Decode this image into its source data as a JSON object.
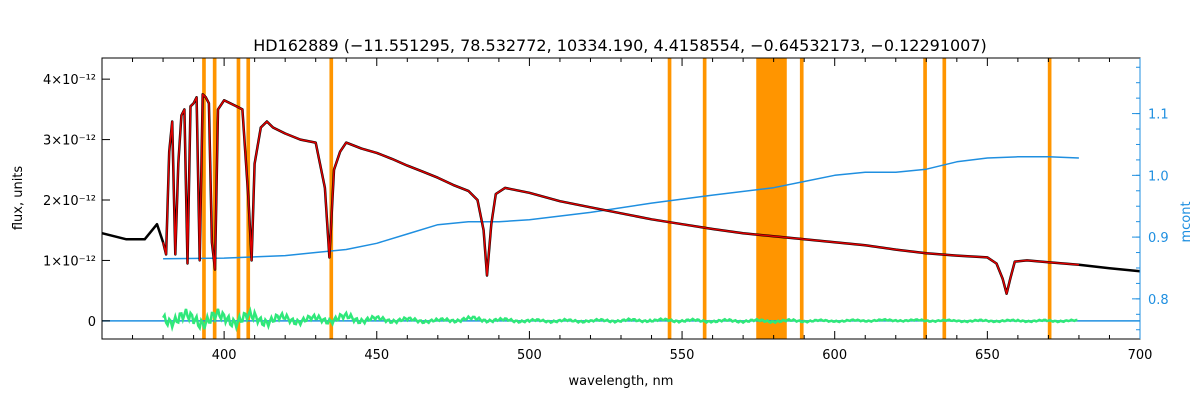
{
  "chart_data": {
    "type": "line",
    "title": "HD162889   (−11.551295, 78.532772, 10334.190, 4.4158554, −0.64532173, −0.12291007)",
    "xlabel": "wavelength, nm",
    "ylabel": "flux, units",
    "y2label": "mcont",
    "xlim": [
      360,
      700
    ],
    "ylim": [
      -3e-13,
      4.35e-12
    ],
    "y2lim": [
      0.735,
      1.19
    ],
    "x_ticks": [
      400,
      450,
      500,
      550,
      600,
      650,
      700
    ],
    "x_tick_labels": [
      "400",
      "450",
      "500",
      "550",
      "600",
      "650",
      "700"
    ],
    "y_ticks": [
      0,
      1e-12,
      2e-12,
      3e-12,
      4e-12
    ],
    "y_tick_labels": [
      "0",
      "1×10⁻¹²",
      "2×10⁻¹²",
      "3×10⁻¹²",
      "4×10⁻¹²"
    ],
    "y2_ticks": [
      0.8,
      0.9,
      1.0,
      1.1
    ],
    "y2_tick_labels": [
      "0.8",
      "0.9",
      "1.0",
      "1.1"
    ],
    "masked_bands": [
      [
        392.8,
        394.0
      ],
      [
        396.3,
        397.5
      ],
      [
        404.1,
        405.3
      ],
      [
        407.3,
        408.5
      ],
      [
        434.5,
        435.7
      ],
      [
        545.3,
        546.5
      ],
      [
        556.8,
        558.0
      ],
      [
        574.3,
        584.3
      ],
      [
        588.6,
        589.8
      ],
      [
        629.0,
        630.2
      ],
      [
        635.3,
        636.5
      ],
      [
        669.8,
        671.0
      ]
    ],
    "series": [
      {
        "role": "observed",
        "color": "#000000",
        "x": [
          360,
          368,
          374,
          378,
          380,
          381,
          382,
          383,
          384,
          385,
          386,
          387,
          388,
          389,
          390,
          391,
          392,
          393,
          394,
          395,
          396,
          397,
          398,
          400,
          402,
          404,
          406,
          408,
          409,
          410,
          412,
          414,
          416,
          418,
          420,
          425,
          430,
          433,
          434.5,
          436,
          438,
          440,
          445,
          450,
          455,
          460,
          465,
          470,
          475,
          480,
          483,
          485,
          486.1,
          487.5,
          489,
          492,
          500,
          510,
          520,
          530,
          540,
          550,
          560,
          570,
          580,
          590,
          600,
          610,
          620,
          630,
          640,
          650,
          653,
          655,
          656.3,
          657.5,
          659,
          663,
          670,
          680,
          690,
          700
        ],
        "y": [
          1.45e-12,
          1.35e-12,
          1.35e-12,
          1.6e-12,
          1.3e-12,
          1.1e-12,
          2.8e-12,
          3.3e-12,
          1.1e-12,
          2.6e-12,
          3.4e-12,
          3.5e-12,
          9.5e-13,
          3.55e-12,
          3.6e-12,
          3.7e-12,
          1e-12,
          3.75e-12,
          3.7e-12,
          3.6e-12,
          1.3e-12,
          8.5e-13,
          3.5e-12,
          3.65e-12,
          3.6e-12,
          3.55e-12,
          3.5e-12,
          2e-12,
          1e-12,
          2.6e-12,
          3.2e-12,
          3.3e-12,
          3.2e-12,
          3.15e-12,
          3.1e-12,
          3e-12,
          2.95e-12,
          2.2e-12,
          1.05e-12,
          2.5e-12,
          2.8e-12,
          2.95e-12,
          2.85e-12,
          2.78e-12,
          2.68e-12,
          2.57e-12,
          2.47e-12,
          2.37e-12,
          2.25e-12,
          2.15e-12,
          2e-12,
          1.5e-12,
          7.5e-13,
          1.6e-12,
          2.1e-12,
          2.2e-12,
          2.12e-12,
          1.98e-12,
          1.88e-12,
          1.78e-12,
          1.68e-12,
          1.6e-12,
          1.52e-12,
          1.45e-12,
          1.4e-12,
          1.35e-12,
          1.3e-12,
          1.25e-12,
          1.18e-12,
          1.12e-12,
          1.08e-12,
          1.05e-12,
          9.5e-13,
          7e-13,
          4.5e-13,
          7e-13,
          9.8e-13,
          1e-12,
          9.7e-13,
          9.3e-13,
          8.7e-13,
          8.2e-13
        ]
      },
      {
        "role": "model",
        "color": "#e00000",
        "x": [
          380,
          381,
          382,
          383,
          384,
          385,
          386,
          387,
          388,
          389,
          390,
          391,
          392,
          393,
          394,
          395,
          396,
          397,
          398,
          400,
          402,
          404,
          406,
          408,
          409,
          410,
          412,
          414,
          416,
          418,
          420,
          425,
          430,
          433,
          434.5,
          436,
          438,
          440,
          445,
          450,
          455,
          460,
          465,
          470,
          475,
          480,
          483,
          485,
          486.1,
          487.5,
          489,
          492,
          500,
          510,
          520,
          530,
          540,
          550,
          560,
          570,
          580,
          590,
          600,
          610,
          620,
          630,
          640,
          650,
          653,
          655,
          656.3,
          657.5,
          659,
          663,
          670,
          680
        ],
        "y": [
          1.3e-12,
          1.1e-12,
          2.8e-12,
          3.3e-12,
          1.1e-12,
          2.6e-12,
          3.4e-12,
          3.5e-12,
          9.5e-13,
          3.55e-12,
          3.6e-12,
          3.7e-12,
          1e-12,
          3.75e-12,
          3.7e-12,
          3.6e-12,
          1.3e-12,
          8.5e-13,
          3.5e-12,
          3.65e-12,
          3.6e-12,
          3.55e-12,
          3.5e-12,
          2e-12,
          1e-12,
          2.6e-12,
          3.2e-12,
          3.3e-12,
          3.2e-12,
          3.15e-12,
          3.1e-12,
          3e-12,
          2.95e-12,
          2.2e-12,
          1.05e-12,
          2.5e-12,
          2.8e-12,
          2.95e-12,
          2.85e-12,
          2.78e-12,
          2.68e-12,
          2.57e-12,
          2.47e-12,
          2.37e-12,
          2.25e-12,
          2.15e-12,
          2e-12,
          1.5e-12,
          7.5e-13,
          1.6e-12,
          2.1e-12,
          2.2e-12,
          2.12e-12,
          1.98e-12,
          1.88e-12,
          1.78e-12,
          1.68e-12,
          1.6e-12,
          1.52e-12,
          1.45e-12,
          1.4e-12,
          1.35e-12,
          1.3e-12,
          1.25e-12,
          1.18e-12,
          1.12e-12,
          1.08e-12,
          1.05e-12,
          9.5e-13,
          7e-13,
          4.5e-13,
          7e-13,
          9.8e-13,
          1e-12,
          9.7e-13,
          9.3e-13
        ]
      },
      {
        "role": "residual",
        "color": "#2fe87a",
        "x": [
          380,
          390,
          400,
          410,
          420,
          430,
          440,
          450,
          460,
          470,
          480,
          490,
          500,
          520,
          540,
          560,
          580,
          600,
          620,
          640,
          660,
          680
        ],
        "y": [
          5e-14,
          2e-14,
          4e-14,
          3e-14,
          2e-14,
          2e-14,
          4e-14,
          2e-14,
          1e-14,
          0.0,
          3e-14,
          1e-14,
          0.0,
          0.0,
          1e-14,
          0.0,
          0.0,
          0.0,
          1e-14,
          0.0,
          0.0,
          0.0
        ],
        "noise": [
          1.4e-13,
          1.8e-13,
          1.6e-13,
          1.4e-13,
          1e-13,
          8e-14,
          1e-13,
          6e-14,
          5e-14,
          4e-14,
          5e-14,
          4e-14,
          3e-14,
          3e-14,
          3e-14,
          3e-14,
          3e-14,
          2e-14,
          2e-14,
          2e-14,
          2e-14,
          2e-14
        ]
      },
      {
        "role": "continuum",
        "color": "#1f8fe0",
        "axis": "right",
        "x": [
          380,
          400,
          420,
          430,
          440,
          450,
          460,
          470,
          480,
          490,
          500,
          520,
          540,
          560,
          580,
          590,
          600,
          610,
          620,
          630,
          640,
          650,
          660,
          670,
          680
        ],
        "y": [
          0.865,
          0.866,
          0.87,
          0.875,
          0.88,
          0.89,
          0.905,
          0.92,
          0.925,
          0.925,
          0.928,
          0.94,
          0.955,
          0.968,
          0.98,
          0.99,
          1.0,
          1.005,
          1.005,
          1.01,
          1.022,
          1.028,
          1.03,
          1.03,
          1.028
        ]
      },
      {
        "role": "zero-line",
        "color": "#1f8fe0",
        "x": [
          360,
          700
        ],
        "y": [
          0,
          0
        ]
      }
    ]
  }
}
